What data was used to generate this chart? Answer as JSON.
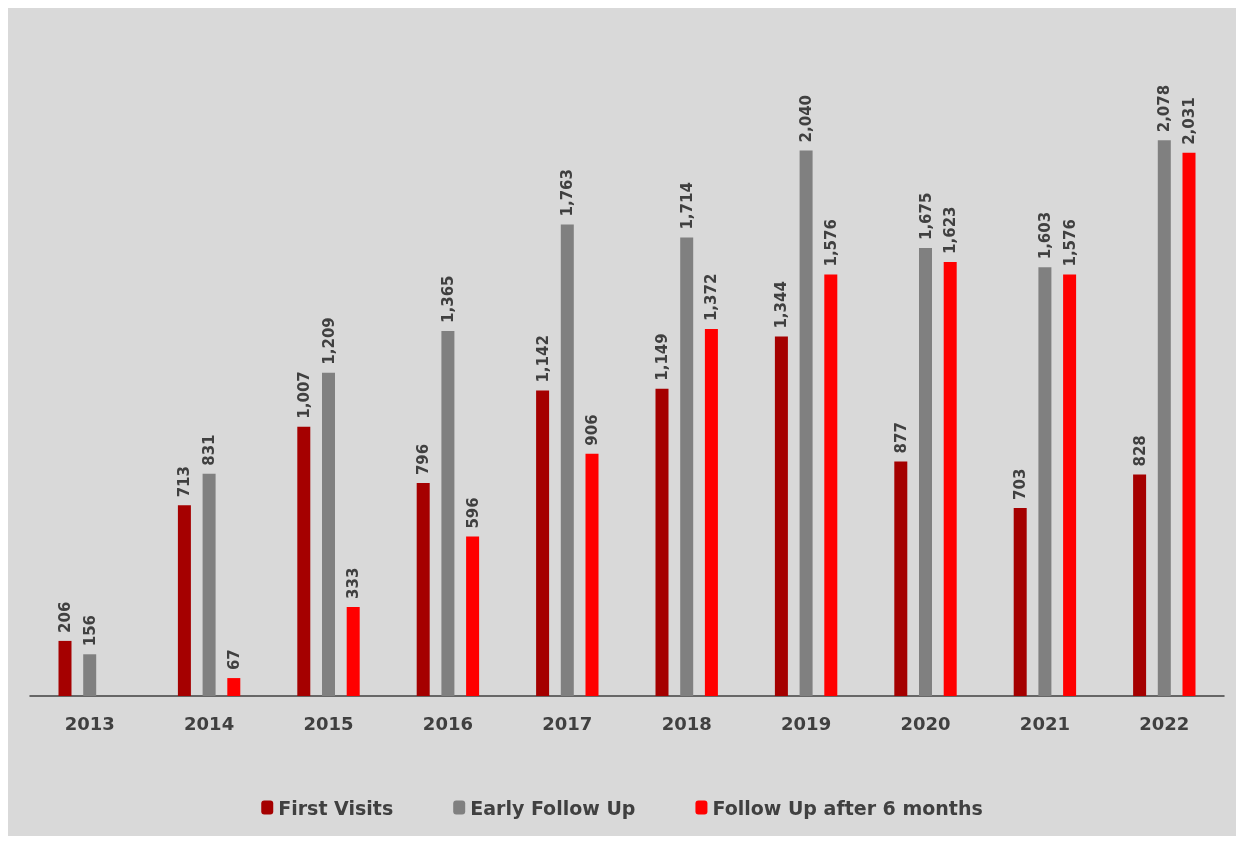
{
  "chart_data": {
    "type": "bar",
    "categories": [
      "2013",
      "2014",
      "2015",
      "2016",
      "2017",
      "2018",
      "2019",
      "2020",
      "2021",
      "2022"
    ],
    "series": [
      {
        "name": "First Visits",
        "color": "#a50000",
        "values": [
          206,
          713,
          1007,
          796,
          1142,
          1149,
          1344,
          877,
          703,
          828
        ],
        "value_labels": [
          "206",
          "713",
          "1,007",
          "796",
          "1,142",
          "1,149",
          "1,344",
          "877",
          "703",
          "828"
        ]
      },
      {
        "name": "Early Follow Up",
        "color": "#808080",
        "values": [
          156,
          831,
          1209,
          1365,
          1763,
          1714,
          2040,
          1675,
          1603,
          2078
        ],
        "value_labels": [
          "156",
          "831",
          "1,209",
          "1,365",
          "1,763",
          "1,714",
          "2,040",
          "1,675",
          "1,603",
          "2,078"
        ]
      },
      {
        "name": "Follow Up after 6 months",
        "color": "#ff0000",
        "values": [
          null,
          67,
          333,
          596,
          906,
          1372,
          1576,
          1623,
          1576,
          2031
        ],
        "value_labels": [
          null,
          "67",
          "333",
          "596",
          "906",
          "1,372",
          "1,576",
          "1,623",
          "1,576",
          "2,031"
        ]
      }
    ],
    "legend": "bottom",
    "grid": false
  }
}
